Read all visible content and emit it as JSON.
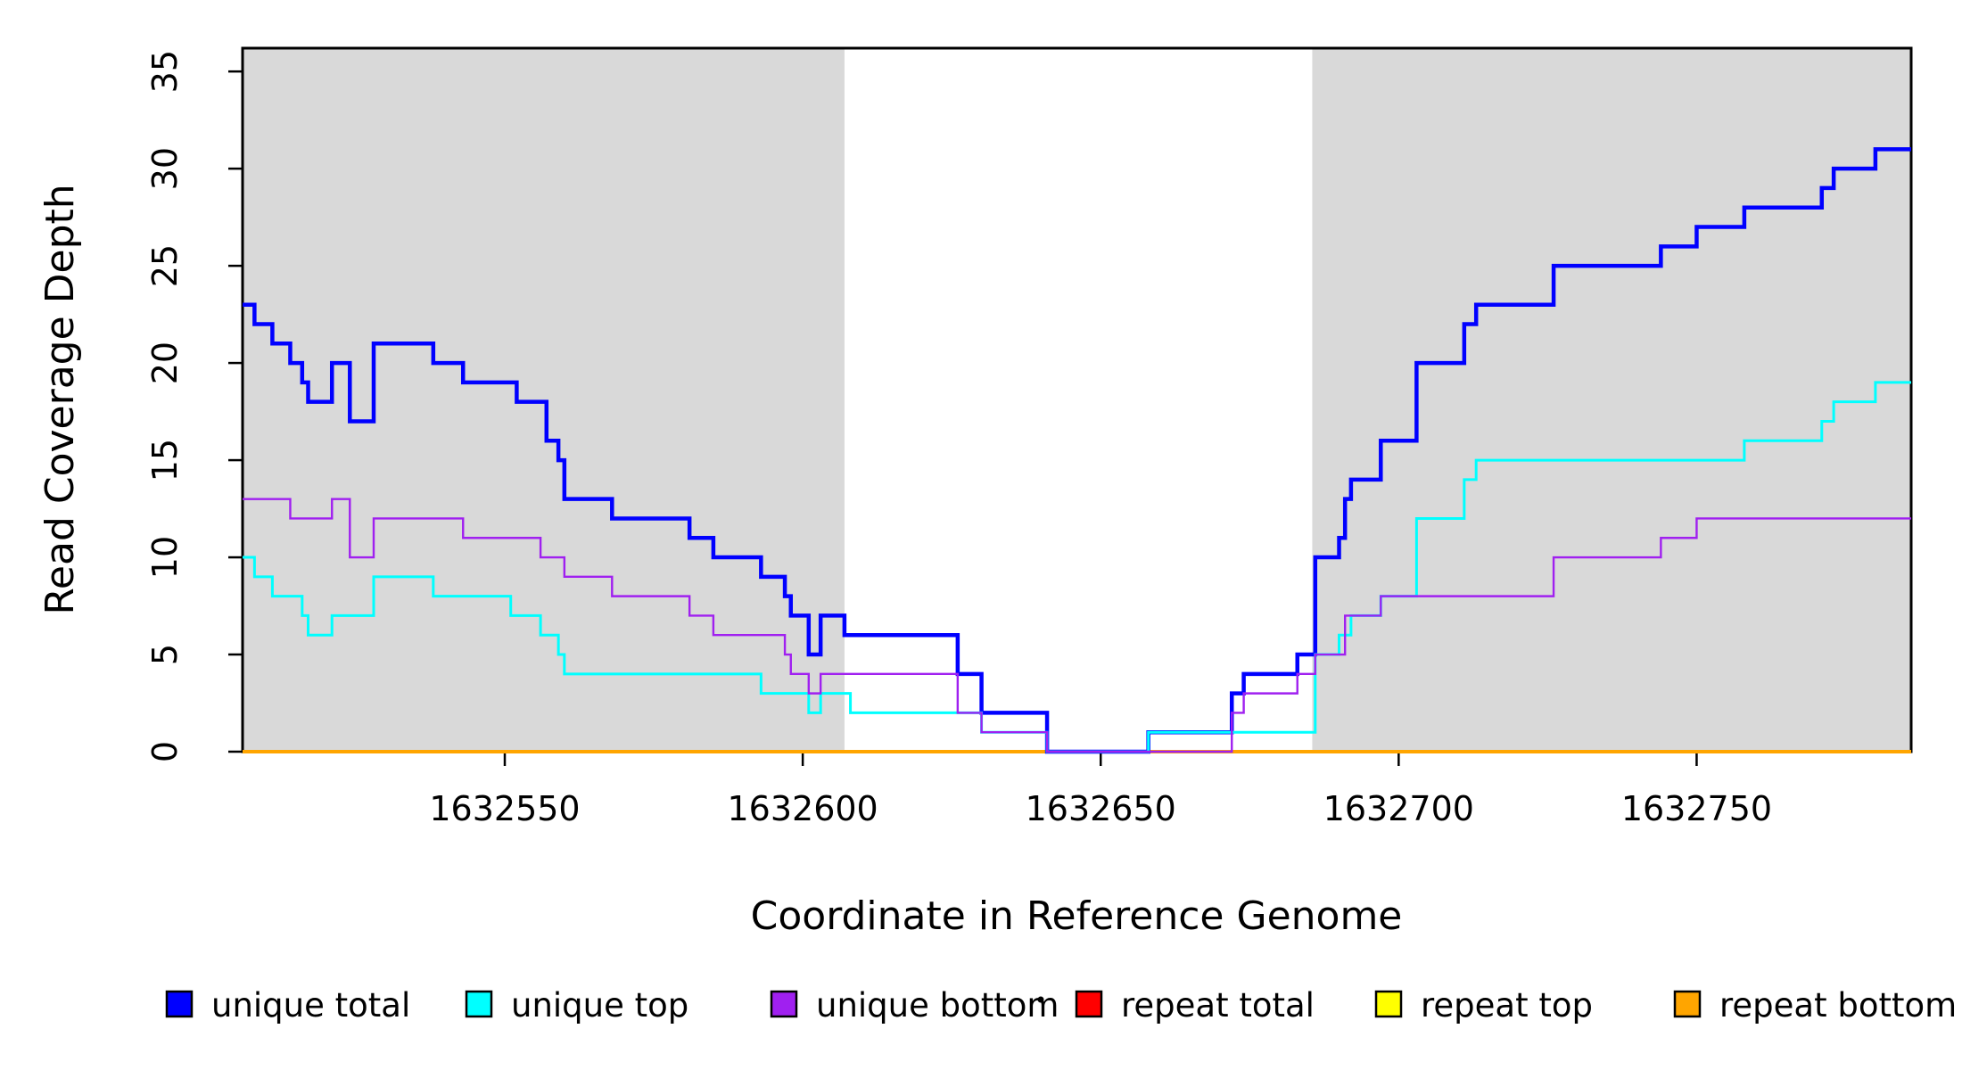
{
  "chart_data": {
    "type": "line",
    "subtype": "step",
    "title": "",
    "xlabel": "Coordinate in Reference Genome",
    "ylabel": "Read Coverage Depth",
    "xlim": [
      1632506,
      1632786
    ],
    "ylim": [
      0,
      36.2
    ],
    "x_ticks": [
      1632550,
      1632600,
      1632650,
      1632700,
      1632750
    ],
    "y_ticks": [
      0,
      5,
      10,
      15,
      20,
      25,
      30,
      35
    ],
    "grid": false,
    "legend_position": "bottom",
    "background_color": "#ffffff",
    "shaded_regions": [
      {
        "x0": 1632506,
        "x1": 1632607,
        "color": "#D9D9D9"
      },
      {
        "x0": 1632685.5,
        "x1": 1632786,
        "color": "#D9D9D9"
      }
    ],
    "series": [
      {
        "name": "unique total",
        "color": "#0000FF",
        "line_width": 4.5,
        "z": 4,
        "steps": [
          [
            1632506,
            23
          ],
          [
            1632508,
            22
          ],
          [
            1632511,
            21
          ],
          [
            1632514,
            20
          ],
          [
            1632516,
            19
          ],
          [
            1632517,
            18
          ],
          [
            1632521,
            20
          ],
          [
            1632524,
            17
          ],
          [
            1632528,
            21
          ],
          [
            1632538,
            20
          ],
          [
            1632543,
            19
          ],
          [
            1632552,
            18
          ],
          [
            1632557,
            16
          ],
          [
            1632559,
            15
          ],
          [
            1632560,
            13
          ],
          [
            1632568,
            12
          ],
          [
            1632581,
            11
          ],
          [
            1632585,
            10
          ],
          [
            1632593,
            9
          ],
          [
            1632597,
            8
          ],
          [
            1632598,
            7
          ],
          [
            1632601,
            5
          ],
          [
            1632603,
            7
          ],
          [
            1632607,
            6
          ],
          [
            1632626,
            4
          ],
          [
            1632630,
            2
          ],
          [
            1632641,
            0
          ],
          [
            1632658,
            1
          ],
          [
            1632672,
            3
          ],
          [
            1632674,
            4
          ],
          [
            1632683,
            5
          ],
          [
            1632686,
            10
          ],
          [
            1632690,
            11
          ],
          [
            1632691,
            13
          ],
          [
            1632692,
            14
          ],
          [
            1632697,
            16
          ],
          [
            1632703,
            20
          ],
          [
            1632711,
            22
          ],
          [
            1632713,
            23
          ],
          [
            1632726,
            25
          ],
          [
            1632744,
            26
          ],
          [
            1632750,
            27
          ],
          [
            1632758,
            28
          ],
          [
            1632771,
            29
          ],
          [
            1632773,
            30
          ],
          [
            1632780,
            31
          ]
        ]
      },
      {
        "name": "unique top",
        "color": "#00FFFF",
        "line_width": 3,
        "z": 5,
        "steps": [
          [
            1632506,
            10
          ],
          [
            1632508,
            9
          ],
          [
            1632511,
            8
          ],
          [
            1632516,
            7
          ],
          [
            1632517,
            6
          ],
          [
            1632521,
            7
          ],
          [
            1632528,
            9
          ],
          [
            1632538,
            8
          ],
          [
            1632551,
            7
          ],
          [
            1632556,
            6
          ],
          [
            1632559,
            5
          ],
          [
            1632560,
            4
          ],
          [
            1632593,
            3
          ],
          [
            1632601,
            2
          ],
          [
            1632603,
            3
          ],
          [
            1632608,
            2
          ],
          [
            1632630,
            1
          ],
          [
            1632641,
            0
          ],
          [
            1632658,
            1
          ],
          [
            1632686,
            5
          ],
          [
            1632690,
            6
          ],
          [
            1632692,
            7
          ],
          [
            1632697,
            8
          ],
          [
            1632703,
            12
          ],
          [
            1632711,
            14
          ],
          [
            1632713,
            15
          ],
          [
            1632758,
            16
          ],
          [
            1632771,
            17
          ],
          [
            1632773,
            18
          ],
          [
            1632780,
            19
          ]
        ]
      },
      {
        "name": "unique bottom",
        "color": "#A020F0",
        "line_width": 2.4,
        "z": 6,
        "steps": [
          [
            1632506,
            13
          ],
          [
            1632514,
            12
          ],
          [
            1632521,
            13
          ],
          [
            1632524,
            10
          ],
          [
            1632528,
            12
          ],
          [
            1632543,
            11
          ],
          [
            1632556,
            10
          ],
          [
            1632560,
            9
          ],
          [
            1632568,
            8
          ],
          [
            1632581,
            7
          ],
          [
            1632585,
            6
          ],
          [
            1632597,
            5
          ],
          [
            1632598,
            4
          ],
          [
            1632601,
            3
          ],
          [
            1632603,
            4
          ],
          [
            1632626,
            2
          ],
          [
            1632630,
            1
          ],
          [
            1632641,
            0
          ],
          [
            1632672,
            2
          ],
          [
            1632674,
            3
          ],
          [
            1632683,
            4
          ],
          [
            1632686,
            5
          ],
          [
            1632691,
            7
          ],
          [
            1632697,
            8
          ],
          [
            1632726,
            10
          ],
          [
            1632744,
            11
          ],
          [
            1632750,
            12
          ]
        ]
      },
      {
        "name": "repeat total",
        "color": "#FF0000",
        "line_width": 2.5,
        "z": 1,
        "steps": [
          [
            1632506,
            0
          ]
        ]
      },
      {
        "name": "repeat top",
        "color": "#FFFF00",
        "line_width": 2.5,
        "z": 2,
        "steps": [
          [
            1632506,
            0
          ]
        ]
      },
      {
        "name": "repeat bottom",
        "color": "#FFA500",
        "line_width": 4,
        "z": 3,
        "steps": [
          [
            1632506,
            0
          ]
        ]
      }
    ]
  }
}
